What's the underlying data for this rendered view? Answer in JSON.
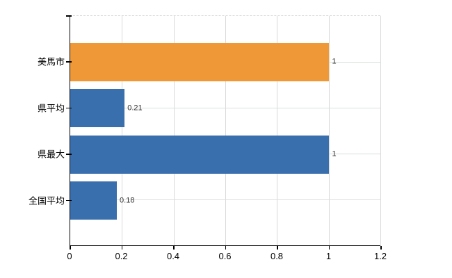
{
  "chart_data": {
    "type": "bar",
    "orientation": "horizontal",
    "title": "",
    "xlabel": "",
    "ylabel": "",
    "categories": [
      "美馬市",
      "県平均",
      "県最大",
      "全国平均"
    ],
    "values": [
      1,
      0.21,
      1,
      0.18
    ],
    "value_labels": [
      "1",
      "0.21",
      "1",
      "0.18"
    ],
    "bar_colors": [
      "#EE9838",
      "#3A6FAD",
      "#3A6FAD",
      "#3A6FAD"
    ],
    "xlim": [
      0,
      1.2
    ],
    "x_ticks": [
      0,
      0.2,
      0.4,
      0.6,
      0.8,
      1,
      1.2
    ],
    "x_tick_labels": [
      "0",
      "0.2",
      "0.4",
      "0.6",
      "0.8",
      "1",
      "1.2"
    ],
    "grid": true,
    "legend": null
  },
  "colors": {
    "accent_orange": "#EE9838",
    "accent_blue": "#3A6FAD",
    "gridline": "#d9d9d9",
    "axis": "#000000",
    "value_text": "#333333",
    "background": "#ffffff"
  }
}
